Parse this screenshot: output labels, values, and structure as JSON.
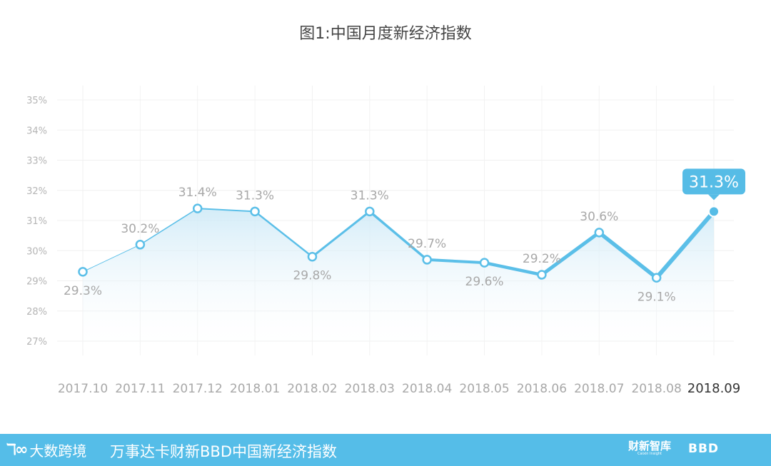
{
  "chart_data": {
    "type": "line",
    "title": "图1:中国月度新经济指数",
    "categories": [
      "2017.10",
      "2017.11",
      "2017.12",
      "2018.01",
      "2018.02",
      "2018.03",
      "2018.04",
      "2018.05",
      "2018.06",
      "2018.07",
      "2018.08",
      "2018.09"
    ],
    "values": [
      29.3,
      30.2,
      31.4,
      31.3,
      29.8,
      31.3,
      29.7,
      29.6,
      29.2,
      30.6,
      29.1,
      31.3
    ],
    "labels": [
      "29.3%",
      "30.2%",
      "31.4%",
      "31.3%",
      "29.8%",
      "31.3%",
      "29.7%",
      "29.6%",
      "29.2%",
      "30.6%",
      "29.1%",
      "31.3%"
    ],
    "yticks": [
      "27%",
      "28%",
      "29%",
      "30%",
      "31%",
      "32%",
      "33%",
      "34%",
      "35%"
    ],
    "ylim": [
      27,
      35
    ],
    "grid": true,
    "highlight_value": "31.3%",
    "colors": {
      "line": "#5bbfe8",
      "highlight": "#56bce6",
      "text": "#a8a8a8",
      "title": "#444444"
    }
  },
  "footer": {
    "logo_mark": "ℸ∞",
    "logo_text": "大数跨境",
    "title": "万事达卡财新BBD中国新经济指数",
    "brand1": "财新智库",
    "brand1_sub": "Caixin Insight",
    "brand2": "BBD"
  }
}
